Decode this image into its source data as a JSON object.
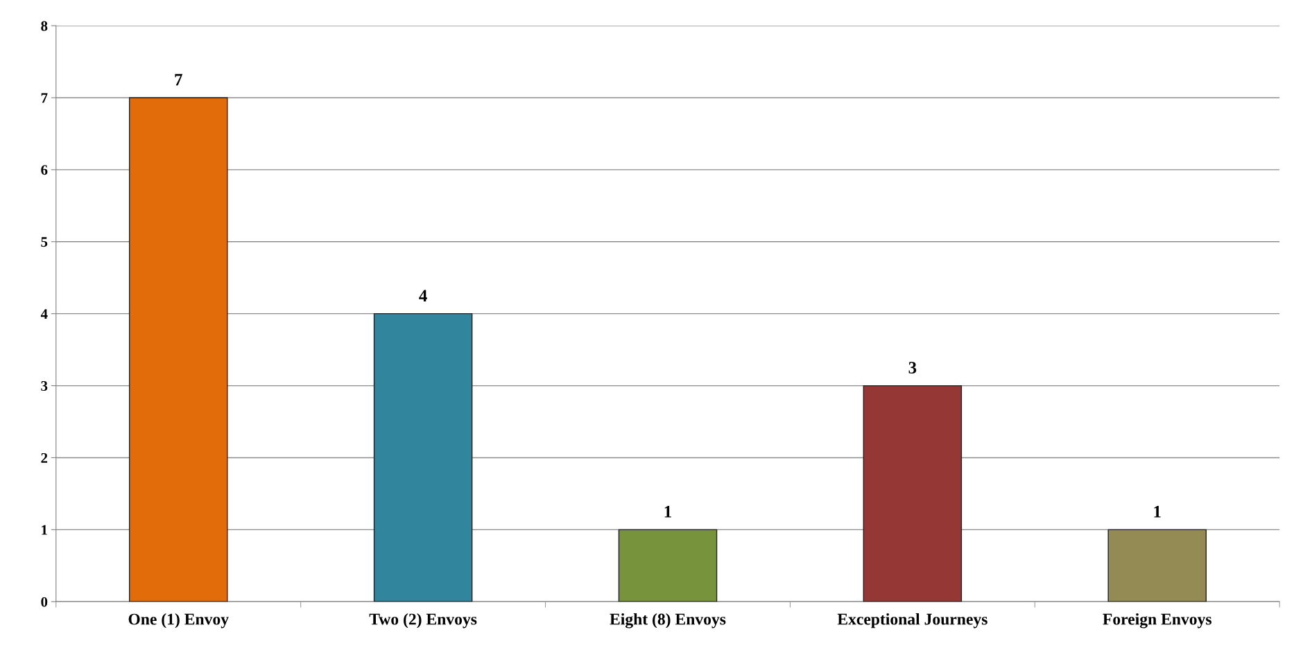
{
  "chart_data": {
    "type": "bar",
    "categories": [
      "One (1) Envoy",
      "Two (2) Envoys",
      "Eight (8) Envoys",
      "Exceptional Journeys",
      "Foreign Envoys"
    ],
    "values": [
      7,
      4,
      1,
      3,
      1
    ],
    "colors": [
      "#e36c0a",
      "#31859c",
      "#77933c",
      "#953735",
      "#948a54"
    ],
    "ylim": [
      0,
      8
    ],
    "yticks": [
      0,
      1,
      2,
      3,
      4,
      5,
      6,
      7,
      8
    ],
    "grid": "y",
    "data_labels": true
  }
}
